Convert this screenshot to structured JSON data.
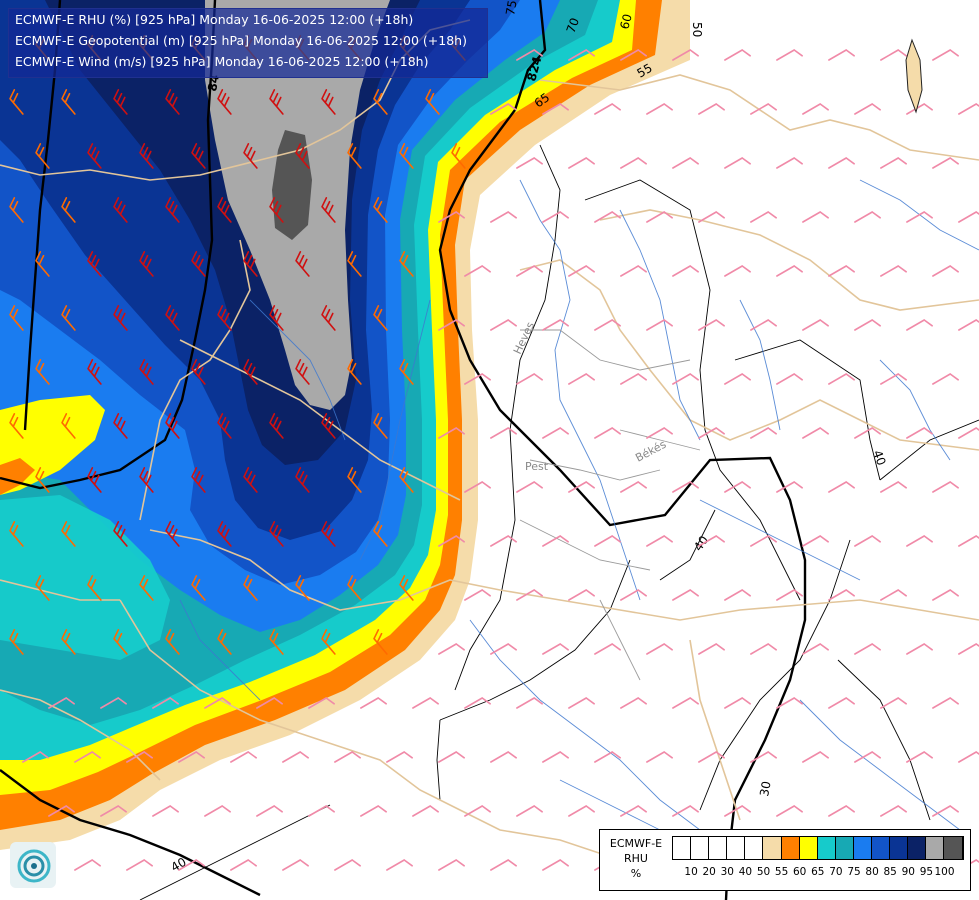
{
  "header": {
    "lines": [
      "ECMWF-E RHU (%) [925 hPa] Monday 16-06-2025 12:00 (+18h)",
      "ECMWF-E Geopotential (m) [925 hPa] Monday 16-06-2025 12:00 (+18h)",
      "ECMWF-E Wind (m/s) [925 hPa] Monday 16-06-2025 12:00 (+18h)"
    ]
  },
  "legend": {
    "title_lines": [
      "ECMWF-E",
      "RHU",
      "%"
    ],
    "classes": [
      {
        "color": "#ffffff",
        "from": 0,
        "to": 10
      },
      {
        "color": "#ffffff",
        "from": 10,
        "to": 20
      },
      {
        "color": "#ffffff",
        "from": 20,
        "to": 30
      },
      {
        "color": "#ffffff",
        "from": 30,
        "to": 40
      },
      {
        "color": "#ffffff",
        "from": 40,
        "to": 50
      },
      {
        "color": "#f5dcaa",
        "from": 50,
        "to": 55
      },
      {
        "color": "#ff8000",
        "from": 55,
        "to": 60
      },
      {
        "color": "#ffff00",
        "from": 60,
        "to": 65
      },
      {
        "color": "#16cbcb",
        "from": 65,
        "to": 70
      },
      {
        "color": "#17a9b4",
        "from": 70,
        "to": 75
      },
      {
        "color": "#1a7cf0",
        "from": 75,
        "to": 80
      },
      {
        "color": "#1254c8",
        "from": 80,
        "to": 85
      },
      {
        "color": "#0a3494",
        "from": 85,
        "to": 90
      },
      {
        "color": "#0b2266",
        "from": 90,
        "to": 95
      },
      {
        "color": "#a9a9a9",
        "from": 95,
        "to": 100
      },
      {
        "color": "#555555",
        "from": 100,
        "to": null
      }
    ],
    "tick_labels": [
      "10",
      "20",
      "30",
      "40",
      "50",
      "55",
      "60",
      "65",
      "70",
      "75",
      "80",
      "85",
      "90",
      "95",
      "100"
    ]
  },
  "contour_labels": {
    "rhu": [
      "50",
      "55",
      "60",
      "65",
      "70",
      "75",
      "30",
      "40",
      "40",
      "40"
    ],
    "geopotential": [
      "824",
      "84"
    ]
  },
  "place_labels": [
    "Heves",
    "Békés",
    "Pest"
  ]
}
